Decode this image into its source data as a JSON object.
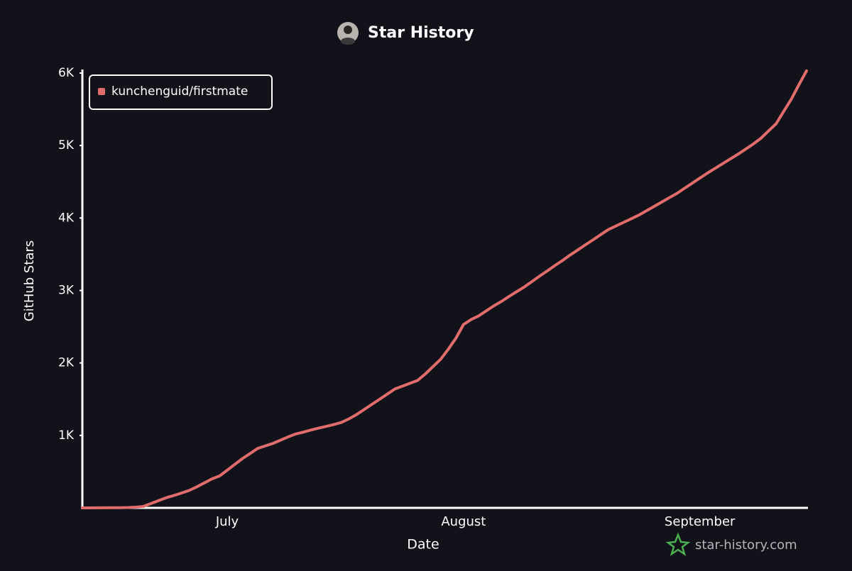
{
  "chart_data": {
    "type": "line",
    "title": "Star History",
    "x_label": "Date",
    "y_label": "GitHub Stars",
    "watermark": "star-history.com",
    "legend": "top-left",
    "grid": false,
    "categories": [
      null,
      null,
      null,
      null,
      null,
      null,
      null,
      null,
      null,
      null,
      null,
      null,
      null,
      null,
      null,
      null,
      null,
      null,
      null,
      "July",
      null,
      null,
      null,
      null,
      null,
      null,
      null,
      null,
      null,
      null,
      null,
      null,
      null,
      null,
      null,
      null,
      null,
      null,
      null,
      null,
      null,
      null,
      null,
      null,
      null,
      null,
      null,
      null,
      null,
      null,
      "August",
      null,
      null,
      null,
      null,
      null,
      null,
      null,
      null,
      null,
      null,
      null,
      null,
      null,
      null,
      null,
      null,
      null,
      null,
      null,
      null,
      null,
      null,
      null,
      null,
      null,
      null,
      null,
      null,
      null,
      null,
      "September",
      null,
      null,
      null,
      null,
      null,
      null,
      null,
      null,
      null,
      null,
      null,
      null,
      null,
      null
    ],
    "series": [
      {
        "name": "kunchenguid/firstmate",
        "color": "#e06c6c",
        "values": [
          0,
          0,
          1,
          1,
          2,
          3,
          5,
          10,
          20,
          60,
          100,
          140,
          170,
          205,
          240,
          290,
          345,
          400,
          440,
          520,
          600,
          680,
          750,
          820,
          855,
          890,
          935,
          980,
          1020,
          1045,
          1075,
          1100,
          1125,
          1150,
          1180,
          1230,
          1290,
          1360,
          1430,
          1500,
          1570,
          1640,
          1680,
          1720,
          1760,
          1850,
          1950,
          2050,
          2190,
          2340,
          2530,
          2600,
          2650,
          2720,
          2790,
          2850,
          2920,
          2985,
          3050,
          3125,
          3200,
          3270,
          3345,
          3415,
          3490,
          3560,
          3630,
          3700,
          3770,
          3840,
          3890,
          3940,
          3990,
          4040,
          4100,
          4160,
          4220,
          4280,
          4340,
          4410,
          4480,
          4550,
          4620,
          4685,
          4750,
          4815,
          4880,
          4950,
          5020,
          5100,
          5200,
          5300,
          5470,
          5640,
          5840,
          6030
        ]
      }
    ],
    "ylim": [
      0,
      6000
    ],
    "yticks": [
      {
        "value": 1000,
        "label": "1K"
      },
      {
        "value": 2000,
        "label": "2K"
      },
      {
        "value": 3000,
        "label": "3K"
      },
      {
        "value": 4000,
        "label": "4K"
      },
      {
        "value": 5000,
        "label": "5K"
      },
      {
        "value": 6000,
        "label": "6K"
      }
    ]
  }
}
